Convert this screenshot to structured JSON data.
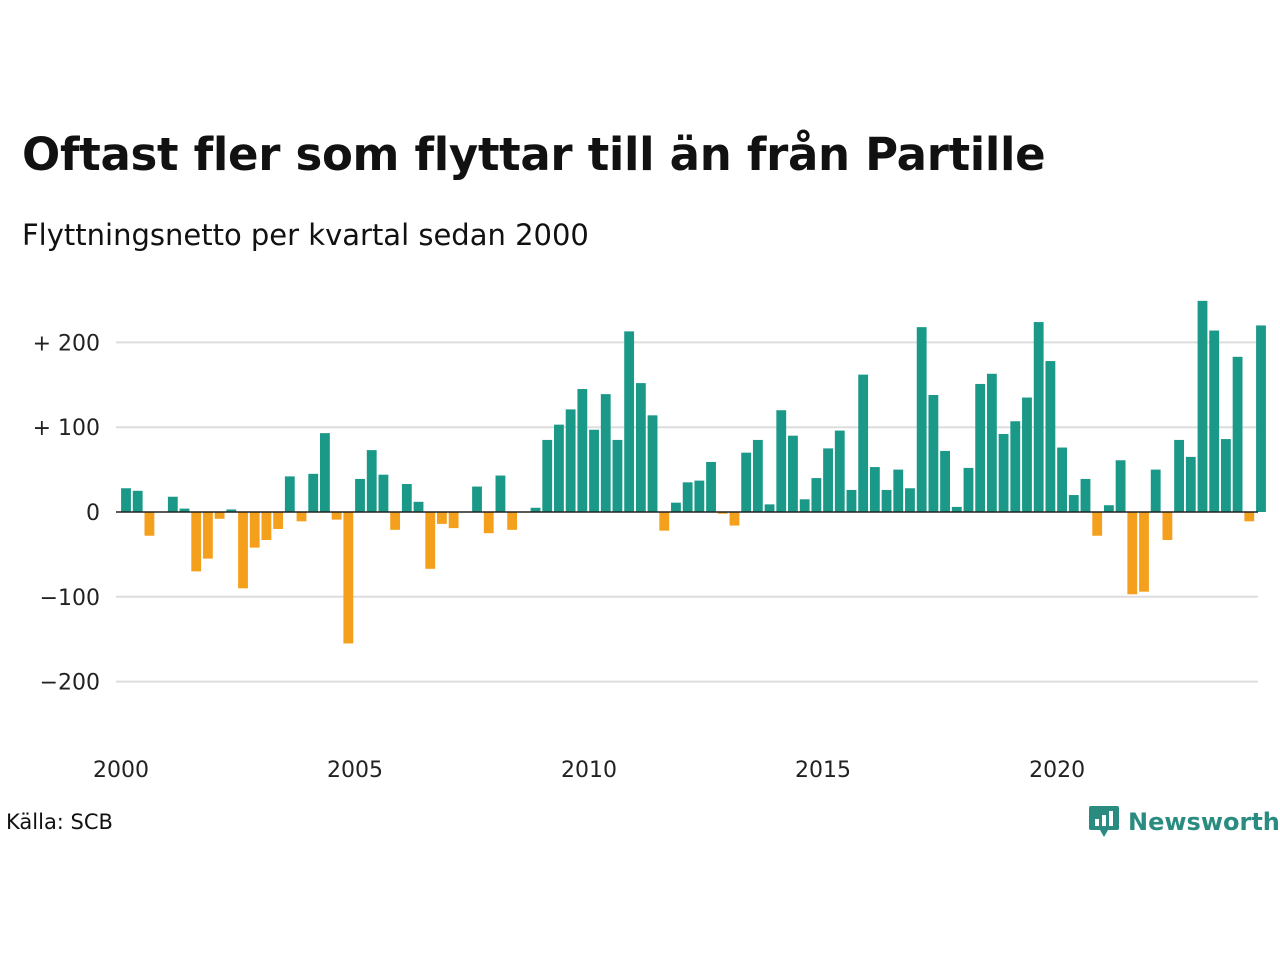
{
  "title": "Oftast fler som flyttar till än från Partille",
  "subtitle": "Flyttningsnetto per kvartal sedan 2000",
  "source": "Källa: SCB",
  "brand": {
    "name": "Newsworthy",
    "icon": "newsworthy-logo-icon"
  },
  "colors": {
    "positive": "#1a9988",
    "negative": "#f5a01d",
    "grid": "#dddddd",
    "baseline": "#222222"
  },
  "chart_data": {
    "type": "bar",
    "title": "Oftast fler som flyttar till än från Partille",
    "subtitle": "Flyttningsnetto per kvartal sedan 2000",
    "xlabel": "",
    "ylabel": "",
    "ylim": [
      -250,
      250
    ],
    "yticks": [
      200,
      100,
      0,
      -100,
      -200
    ],
    "ytick_labels": [
      "+ 200",
      "+ 100",
      "0",
      "−100",
      "−200"
    ],
    "xticks": [
      "2000",
      "2005",
      "2010",
      "2015",
      "2020"
    ],
    "start": "2000 Q1",
    "frequency": "quarter",
    "grid": true,
    "legend": "none",
    "values": [
      28,
      25,
      -28,
      0,
      18,
      4,
      -70,
      -55,
      -8,
      3,
      -90,
      -42,
      -33,
      -20,
      42,
      -11,
      45,
      93,
      -9,
      -155,
      39,
      73,
      44,
      -21,
      33,
      12,
      -67,
      -14,
      -19,
      0,
      30,
      -25,
      43,
      -21,
      0,
      5,
      85,
      103,
      121,
      145,
      97,
      139,
      85,
      213,
      152,
      114,
      -22,
      11,
      35,
      37,
      59,
      -2,
      -16,
      70,
      85,
      9,
      120,
      90,
      15,
      40,
      75,
      96,
      26,
      162,
      53,
      26,
      50,
      28,
      218,
      138,
      72,
      6,
      52,
      151,
      163,
      92,
      107,
      135,
      224,
      178,
      76,
      20,
      39,
      -28,
      8,
      61,
      -97,
      -94,
      50,
      -33,
      85,
      65,
      249,
      214,
      86,
      183,
      -11,
      220
    ]
  }
}
